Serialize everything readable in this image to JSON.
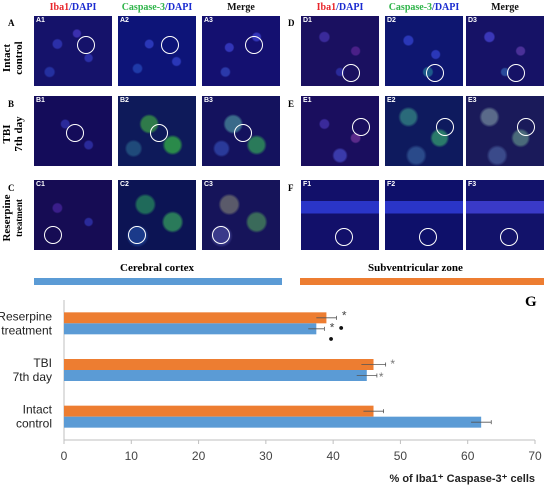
{
  "column_headers": [
    {
      "iba": "Iba1",
      "slash": "/",
      "dapi": "DAPI"
    },
    {
      "casp": "Caspase-3",
      "slash": "/",
      "dapi": "DAPI"
    },
    {
      "merge": "Merge"
    },
    {
      "iba": "Iba1",
      "slash": "/",
      "dapi": "DAPI"
    },
    {
      "casp": "Caspase-3",
      "slash": "/",
      "dapi": "DAPI"
    },
    {
      "merge": "Merge"
    }
  ],
  "row_labels": {
    "r1": [
      "Intact",
      "control"
    ],
    "r2": [
      "TBI",
      "7th day"
    ],
    "r3": [
      "Reserpine",
      "treatment"
    ]
  },
  "row_letters": [
    "A",
    "B",
    "C",
    "D",
    "E",
    "F"
  ],
  "panels": [
    [
      "A1",
      "A2",
      "A3",
      "D1",
      "D2",
      "D3"
    ],
    [
      "B1",
      "B2",
      "B3",
      "E1",
      "E2",
      "E3"
    ],
    [
      "C1",
      "C2",
      "C3",
      "F1",
      "F2",
      "F3"
    ]
  ],
  "regions": {
    "left": "Cerebral cortex",
    "right": "Subventricular zone"
  },
  "colors": {
    "cortex": "#5b9bd5",
    "svz": "#ed7d31",
    "iba": "#e8262b",
    "casp": "#2fb44a",
    "dapi": "#2a3bd0"
  },
  "panel_letter": "G",
  "chart_data": {
    "type": "bar",
    "orientation": "horizontal",
    "categories": [
      "Intact control",
      "TBI 7th day",
      "Reserpine treatment"
    ],
    "category_lines": [
      [
        "Intact",
        "control"
      ],
      [
        "TBI",
        "7th day"
      ],
      [
        "Reserpine",
        "treatment"
      ]
    ],
    "series": [
      {
        "color": "#ed7d31",
        "values": [
          46,
          46,
          39
        ],
        "errors": [
          1.5,
          1.8,
          1.5
        ]
      },
      {
        "color": "#5b9bd5",
        "values": [
          62,
          45,
          37.5
        ],
        "errors": [
          1.5,
          1.5,
          1.2
        ]
      }
    ],
    "xlim": [
      0,
      70
    ],
    "xticks": [
      "0",
      "10",
      "20",
      "30",
      "40",
      "50",
      "60",
      "70"
    ],
    "xlabel": "% of Iba1⁺ Caspase-3⁺ cells",
    "markers": {
      "star": "*",
      "dot": "●"
    },
    "grid": false
  }
}
